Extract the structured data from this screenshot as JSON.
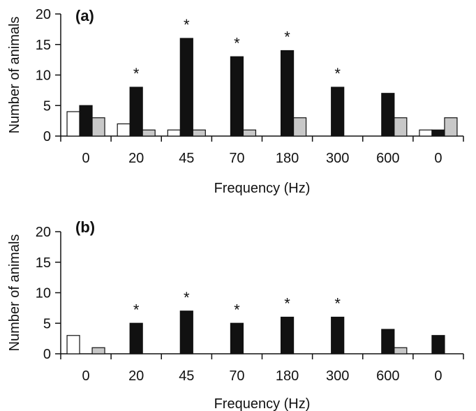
{
  "chart_data": [
    {
      "type": "bar",
      "panel_label": "(a)",
      "categories": [
        "0",
        "20",
        "45",
        "70",
        "180",
        "300",
        "600",
        "0"
      ],
      "series": [
        {
          "values": [
            4,
            2,
            1,
            0,
            0,
            0,
            0,
            1
          ],
          "color": "#ffffff"
        },
        {
          "values": [
            5,
            8,
            16,
            13,
            14,
            8,
            7,
            1
          ],
          "color": "#111111"
        },
        {
          "values": [
            3,
            1,
            1,
            1,
            3,
            0,
            3,
            3
          ],
          "color": "#c8c8c8"
        }
      ],
      "significance": [
        "",
        "*",
        "*",
        "*",
        "*",
        "*",
        "",
        ""
      ],
      "xlabel": "Frequency (Hz)",
      "ylabel": "Number of animals",
      "ylim": [
        0,
        20
      ],
      "yticks": [
        "0",
        "5",
        "10",
        "15",
        "20"
      ],
      "legend": "none",
      "grid": false
    },
    {
      "type": "bar",
      "panel_label": "(b)",
      "categories": [
        "0",
        "20",
        "45",
        "70",
        "180",
        "300",
        "600",
        "0"
      ],
      "series": [
        {
          "values": [
            3,
            0,
            0,
            0,
            0,
            0,
            0,
            0
          ],
          "color": "#ffffff"
        },
        {
          "values": [
            0,
            5,
            7,
            5,
            6,
            6,
            4,
            3
          ],
          "color": "#111111"
        },
        {
          "values": [
            1,
            0,
            0,
            0,
            0,
            0,
            1,
            0
          ],
          "color": "#c8c8c8"
        }
      ],
      "significance": [
        "",
        "*",
        "*",
        "*",
        "*",
        "*",
        "",
        ""
      ],
      "xlabel": "Frequency (Hz)",
      "ylabel": "Number of animals",
      "ylim": [
        0,
        20
      ],
      "yticks": [
        "0",
        "5",
        "10",
        "15",
        "20"
      ],
      "legend": "none",
      "grid": false
    }
  ]
}
